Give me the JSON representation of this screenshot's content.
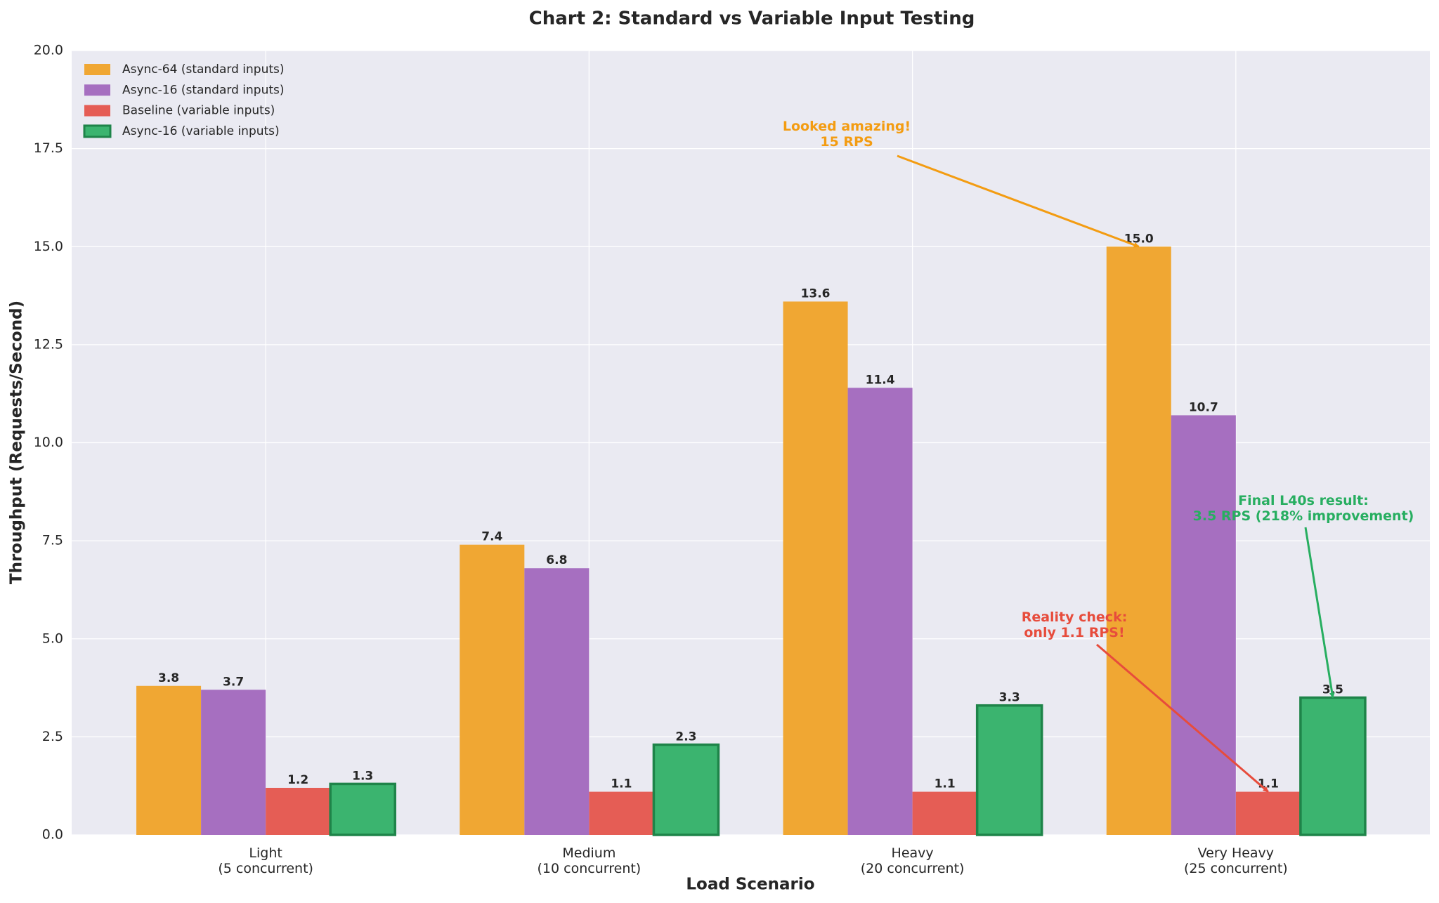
{
  "chart_data": {
    "type": "bar",
    "title": "Chart 2: Standard vs Variable Input Testing",
    "xlabel": "Load Scenario",
    "ylabel": "Throughput (Requests/Second)",
    "categories": [
      "Light\n(5 concurrent)",
      "Medium\n(10 concurrent)",
      "Heavy\n(20 concurrent)",
      "Very Heavy\n(25 concurrent)"
    ],
    "series": [
      {
        "name": "Async-64 (standard inputs)",
        "color": "#f0a733",
        "values": [
          3.8,
          7.4,
          13.6,
          15.0
        ],
        "value_labels": [
          "3.8",
          "7.4",
          "13.6",
          "15.0"
        ]
      },
      {
        "name": "Async-16 (standard inputs)",
        "color": "#a66fc0",
        "values": [
          3.7,
          6.8,
          11.4,
          10.7
        ]
      },
      {
        "name": "Baseline (variable inputs)",
        "color": "#e55d55",
        "values": [
          1.2,
          1.1,
          1.1,
          1.1
        ]
      },
      {
        "name": "Async-16 (variable inputs)",
        "color": "#3bb46f",
        "edgecolor": "#1e8449",
        "values": [
          1.3,
          2.3,
          3.3,
          3.5
        ]
      }
    ],
    "ylim": [
      0,
      20
    ],
    "yticks": [
      {
        "value": 0,
        "label": "0.0"
      },
      2.5,
      {
        "value": 5,
        "label": "5.0"
      },
      7.5,
      {
        "value": 10,
        "label": "10.0"
      },
      12.5,
      {
        "value": 15,
        "label": "15.0"
      },
      17.5,
      {
        "value": 20,
        "label": "20.0"
      }
    ],
    "grid": true,
    "legend": "upper left",
    "annotations": [
      {
        "text": "Looked amazing!\n15 RPS",
        "color": "#f39c12"
      },
      {
        "text": "Reality check:\nonly 1.1 RPS!",
        "color": "#e74c3c"
      },
      {
        "text": "Final L40s result:\n3.5 RPS (218% improvement)",
        "color": "#27ae60"
      }
    ]
  }
}
